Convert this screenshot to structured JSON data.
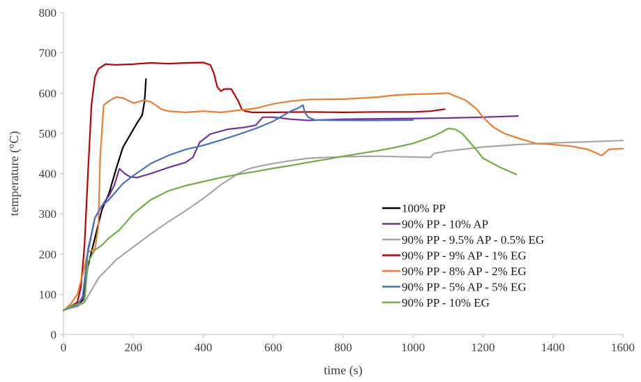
{
  "chart_data": {
    "type": "line",
    "title": "",
    "xlabel": "time (s)",
    "ylabel": "temperature  (°C)",
    "xlim": [
      0,
      1600
    ],
    "ylim": [
      0,
      800
    ],
    "xticks": [
      0,
      200,
      400,
      600,
      800,
      1000,
      1200,
      1400,
      1600
    ],
    "yticks": [
      0,
      100,
      200,
      300,
      400,
      500,
      600,
      700,
      800
    ],
    "xtick_labels": [
      "0",
      "200",
      "400",
      "600",
      "800",
      "1000",
      "1200",
      "1400",
      "1600"
    ],
    "ytick_labels": [
      "0",
      "100",
      "200",
      "300",
      "400",
      "500",
      "600",
      "700",
      "800"
    ],
    "grid": false,
    "legend_position": "bottom-center",
    "series": [
      {
        "name": "100% PP",
        "color": "#000000",
        "x": [
          0,
          20,
          40,
          55,
          70,
          90,
          110,
          130,
          150,
          170,
          190,
          210,
          225,
          232,
          236
        ],
        "y": [
          60,
          70,
          75,
          85,
          170,
          240,
          310,
          350,
          410,
          465,
          495,
          525,
          545,
          580,
          635
        ]
      },
      {
        "name": "90% PP - 10% AP",
        "color": "#7030a0",
        "x": [
          0,
          20,
          40,
          55,
          70,
          90,
          110,
          130,
          145,
          160,
          175,
          190,
          210,
          250,
          300,
          350,
          370,
          390,
          420,
          470,
          520,
          550,
          570,
          600,
          650,
          700,
          800,
          900,
          1000,
          1100,
          1200,
          1300
        ],
        "y": [
          60,
          70,
          75,
          90,
          210,
          290,
          320,
          345,
          370,
          412,
          400,
          392,
          390,
          400,
          415,
          428,
          440,
          478,
          498,
          510,
          515,
          520,
          540,
          540,
          535,
          532,
          535,
          536,
          537,
          538,
          540,
          543
        ]
      },
      {
        "name": "90% PP - 9.5% AP - 0.5% EG",
        "color": "#a6a6a6",
        "x": [
          0,
          20,
          40,
          60,
          80,
          100,
          150,
          200,
          250,
          300,
          350,
          400,
          450,
          500,
          530,
          560,
          600,
          650,
          700,
          800,
          900,
          1000,
          1050,
          1060,
          1100,
          1200,
          1300,
          1400,
          1500,
          1600
        ],
        "y": [
          60,
          65,
          70,
          80,
          110,
          140,
          185,
          218,
          250,
          280,
          308,
          338,
          372,
          400,
          412,
          418,
          425,
          432,
          438,
          442,
          443,
          441,
          440,
          450,
          456,
          466,
          472,
          476,
          479,
          482
        ]
      },
      {
        "name": "90% PP - 9% AP - 1% EG",
        "color": "#c00000",
        "x": [
          0,
          20,
          40,
          50,
          60,
          70,
          80,
          90,
          100,
          120,
          150,
          200,
          250,
          300,
          350,
          400,
          420,
          430,
          440,
          450,
          460,
          480,
          500,
          510,
          520,
          540,
          600,
          700,
          800,
          900,
          1000,
          1050,
          1090
        ],
        "y": [
          60,
          70,
          80,
          120,
          220,
          400,
          570,
          640,
          660,
          672,
          670,
          672,
          675,
          673,
          675,
          676,
          670,
          650,
          615,
          605,
          610,
          610,
          580,
          560,
          555,
          552,
          552,
          553,
          552,
          553,
          553,
          555,
          560
        ]
      },
      {
        "name": "90% PP - 8% AP - 2% EG",
        "color": "#ed7d31",
        "x": [
          0,
          20,
          40,
          55,
          70,
          90,
          100,
          105,
          115,
          130,
          150,
          170,
          200,
          230,
          250,
          280,
          300,
          350,
          400,
          450,
          500,
          550,
          600,
          650,
          700,
          800,
          900,
          950,
          1000,
          1050,
          1100,
          1150,
          1180,
          1200,
          1230,
          1260,
          1300,
          1350,
          1400,
          1450,
          1500,
          1540,
          1560,
          1600
        ],
        "y": [
          60,
          75,
          100,
          150,
          205,
          212,
          270,
          440,
          570,
          580,
          590,
          588,
          575,
          582,
          578,
          560,
          555,
          552,
          555,
          552,
          557,
          562,
          573,
          580,
          584,
          585,
          590,
          595,
          597,
          598,
          600,
          582,
          562,
          540,
          515,
          500,
          488,
          475,
          472,
          468,
          460,
          445,
          460,
          462
        ]
      },
      {
        "name": "90% PP - 5% AP - 5% EG",
        "color": "#4472c4",
        "x": [
          0,
          20,
          40,
          55,
          70,
          90,
          110,
          130,
          150,
          170,
          200,
          250,
          300,
          350,
          400,
          450,
          500,
          550,
          600,
          650,
          670,
          685,
          690,
          700,
          720,
          800,
          900,
          1000
        ],
        "y": [
          60,
          68,
          72,
          95,
          205,
          290,
          320,
          335,
          355,
          375,
          395,
          425,
          445,
          460,
          470,
          483,
          497,
          512,
          530,
          555,
          562,
          570,
          552,
          540,
          533,
          532,
          532,
          533
        ]
      },
      {
        "name": "90% PP - 10% EG",
        "color": "#70ad47",
        "x": [
          0,
          20,
          40,
          60,
          70,
          90,
          110,
          130,
          160,
          200,
          250,
          300,
          350,
          400,
          450,
          500,
          550,
          600,
          650,
          700,
          750,
          800,
          850,
          900,
          950,
          1000,
          1050,
          1080,
          1100,
          1120,
          1140,
          1160,
          1180,
          1200,
          1250,
          1295
        ],
        "y": [
          60,
          70,
          75,
          80,
          180,
          210,
          222,
          240,
          260,
          300,
          335,
          357,
          370,
          380,
          390,
          398,
          405,
          413,
          420,
          428,
          435,
          443,
          450,
          457,
          465,
          475,
          490,
          502,
          512,
          510,
          500,
          480,
          460,
          438,
          415,
          398
        ]
      }
    ]
  }
}
